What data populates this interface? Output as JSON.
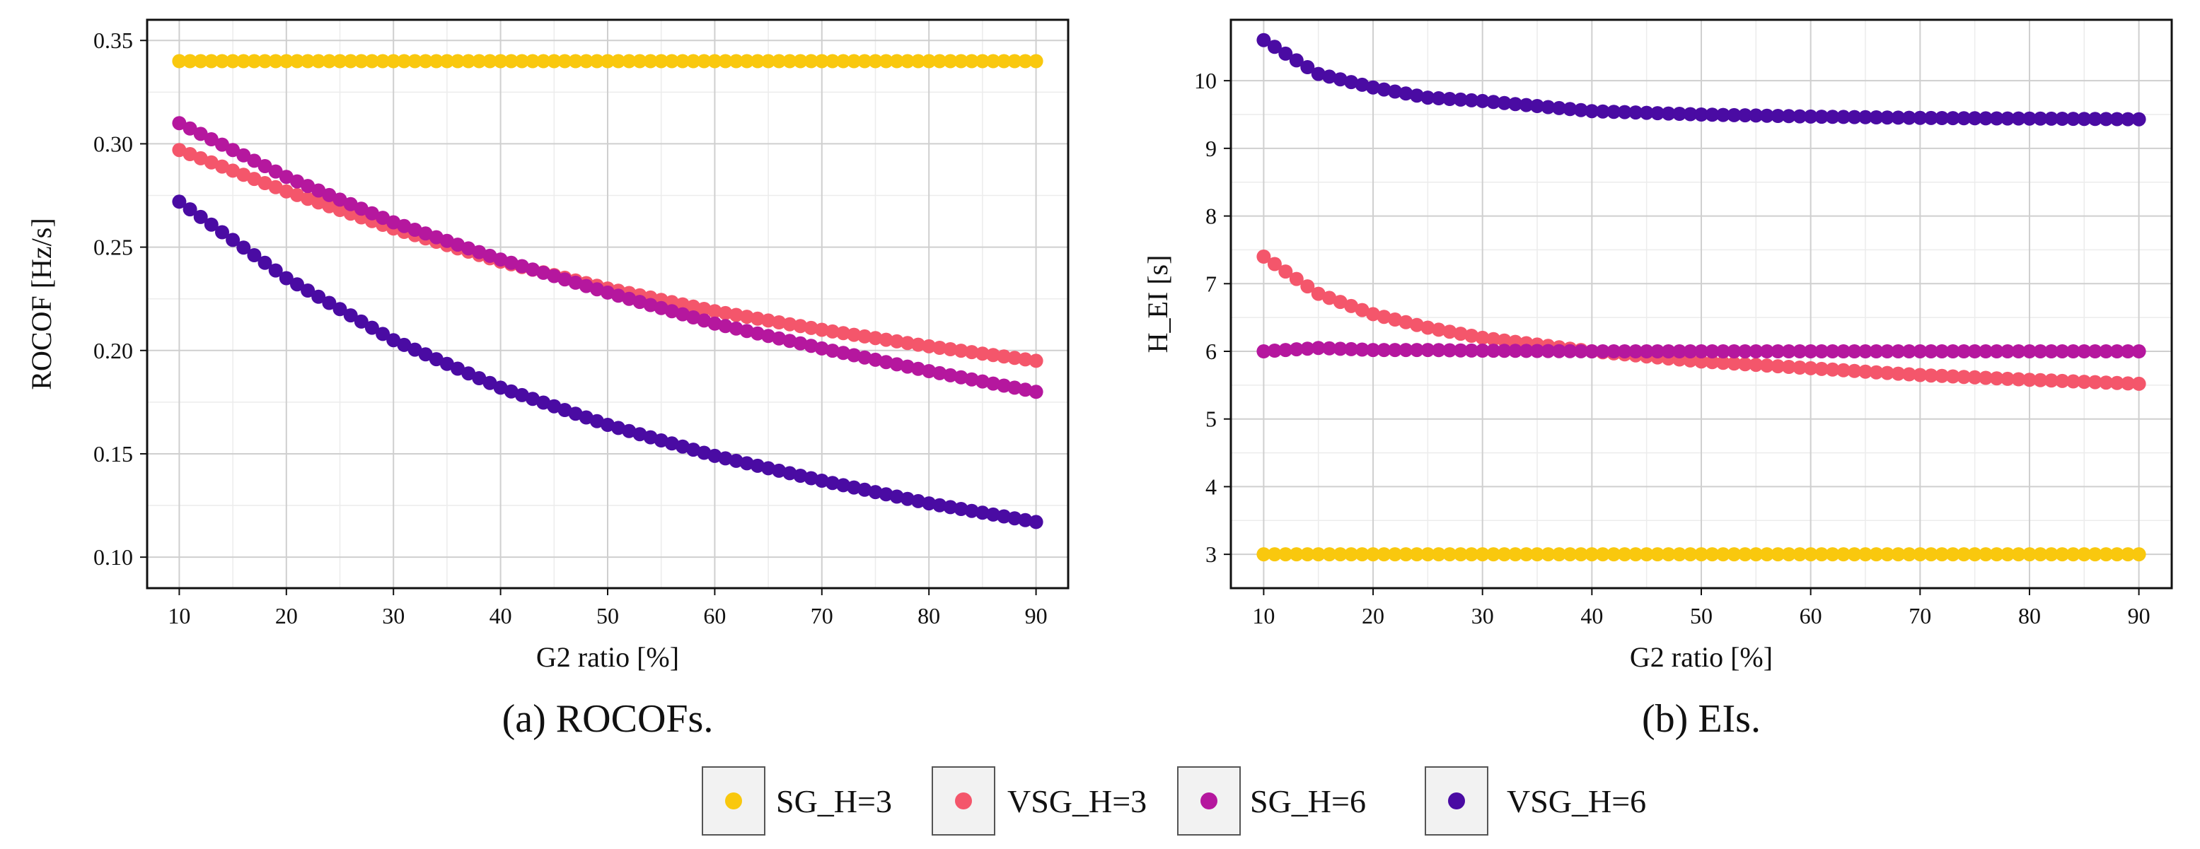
{
  "chart_data": [
    {
      "type": "scatter",
      "id": "rocof",
      "caption": "(a) ROCOFs.",
      "xlabel": "G2 ratio [%]",
      "ylabel": "ROCOF [Hz/s]",
      "xlim": [
        7,
        93
      ],
      "ylim": [
        0.085,
        0.36
      ],
      "xticks": [
        10,
        20,
        30,
        40,
        50,
        60,
        70,
        80,
        90
      ],
      "yticks": [
        0.1,
        0.15,
        0.2,
        0.25,
        0.3,
        0.35
      ],
      "xtick_labels": [
        "10",
        "20",
        "30",
        "40",
        "50",
        "60",
        "70",
        "80",
        "90"
      ],
      "ytick_labels": [
        "0.10",
        "0.15",
        "0.20",
        "0.25",
        "0.30",
        "0.35"
      ],
      "grid": true,
      "x": [
        10,
        20,
        30,
        40,
        50,
        60,
        70,
        80,
        90
      ],
      "series": [
        {
          "name": "SG_H=3",
          "color": "#F9C80E",
          "values": [
            0.34,
            0.34,
            0.34,
            0.34,
            0.34,
            0.34,
            0.34,
            0.34,
            0.34
          ]
        },
        {
          "name": "VSG_H=3",
          "color": "#F4566B",
          "values": [
            0.297,
            0.277,
            0.259,
            0.243,
            0.23,
            0.219,
            0.21,
            0.202,
            0.195
          ]
        },
        {
          "name": "SG_H=6",
          "color": "#B5179E",
          "values": [
            0.31,
            0.284,
            0.262,
            0.244,
            0.228,
            0.213,
            0.201,
            0.19,
            0.18
          ]
        },
        {
          "name": "VSG_H=6",
          "color": "#4A0BA3",
          "values": [
            0.272,
            0.235,
            0.205,
            0.182,
            0.164,
            0.149,
            0.137,
            0.126,
            0.117
          ]
        }
      ]
    },
    {
      "type": "scatter",
      "id": "ei",
      "caption": "(b) EIs.",
      "xlabel": "G2 ratio [%]",
      "ylabel": "H_EI [s]",
      "xlim": [
        7,
        93
      ],
      "ylim": [
        2.5,
        10.9
      ],
      "xticks": [
        10,
        20,
        30,
        40,
        50,
        60,
        70,
        80,
        90
      ],
      "yticks": [
        3,
        4,
        5,
        6,
        7,
        8,
        9,
        10
      ],
      "xtick_labels": [
        "10",
        "20",
        "30",
        "40",
        "50",
        "60",
        "70",
        "80",
        "90"
      ],
      "ytick_labels": [
        "3",
        "4",
        "5",
        "6",
        "7",
        "8",
        "9",
        "10"
      ],
      "grid": true,
      "x": [
        10,
        15,
        20,
        25,
        30,
        40,
        50,
        60,
        70,
        80,
        90
      ],
      "series": [
        {
          "name": "SG_H=3",
          "color": "#F9C80E",
          "values": [
            3.0,
            3.0,
            3.0,
            3.0,
            3.0,
            3.0,
            3.0,
            3.0,
            3.0,
            3.0,
            3.0
          ]
        },
        {
          "name": "VSG_H=3",
          "color": "#F4566B",
          "values": [
            7.4,
            6.85,
            6.55,
            6.35,
            6.2,
            6.0,
            5.85,
            5.75,
            5.65,
            5.58,
            5.52
          ]
        },
        {
          "name": "SG_H=6",
          "color": "#B5179E",
          "values": [
            6.0,
            6.05,
            6.02,
            6.02,
            6.01,
            6.0,
            6.0,
            6.0,
            6.0,
            6.0,
            6.0
          ]
        },
        {
          "name": "VSG_H=6",
          "color": "#4A0BA3",
          "values": [
            10.6,
            10.1,
            9.9,
            9.75,
            9.7,
            9.55,
            9.5,
            9.47,
            9.45,
            9.44,
            9.43
          ]
        }
      ]
    }
  ],
  "legend": {
    "placement": "bottom-center",
    "items": [
      {
        "label": "SG_H=3",
        "color": "#F9C80E"
      },
      {
        "label": "VSG_H=3",
        "color": "#F4566B"
      },
      {
        "label": "SG_H=6",
        "color": "#B5179E"
      },
      {
        "label": "VSG_H=6",
        "color": "#4A0BA3"
      }
    ]
  }
}
